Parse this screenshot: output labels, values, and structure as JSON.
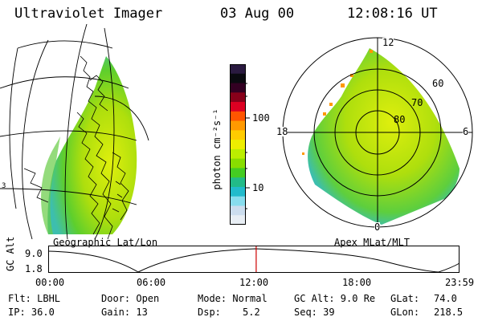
{
  "header": {
    "instrument": "Ultraviolet Imager",
    "date": "03 Aug 00",
    "time": "12:08:16 UT"
  },
  "panels": {
    "left_label": "Geographic Lat/Lon",
    "right_label": "Apex MLat/MLT",
    "left_edge_tick": "3"
  },
  "colorbar": {
    "unit_label": "photon cm⁻²s⁻¹",
    "ticks": [
      "100",
      "10"
    ],
    "colors": [
      "#2a1a40",
      "#0a0a10",
      "#330022",
      "#88001a",
      "#dd0022",
      "#ff5500",
      "#ff9900",
      "#ffcc00",
      "#eeee00",
      "#bbee00",
      "#88dd00",
      "#44cc22",
      "#22bb88",
      "#22bbcc",
      "#88ddee",
      "#ccddee",
      "#e8eef4"
    ]
  },
  "polar": {
    "mlt_labels": {
      "top": "12",
      "left": "18",
      "right": "6",
      "bottom": "0"
    },
    "lat_labels": [
      "60",
      "70",
      "80"
    ]
  },
  "timeline": {
    "axis_label": "GC Alt",
    "y_ticks": [
      "9.0",
      "1.8"
    ],
    "x_ticks": [
      "00:00",
      "06:00",
      "12:00",
      "18:00",
      "23:59"
    ],
    "current_time_fraction": 0.5057
  },
  "info": {
    "flt": "Flt: LBHL",
    "ip": "IP: 36.0",
    "door": "Door: Open",
    "gain": "Gain: 13",
    "mode": "Mode: Normal",
    "dsp_label": "Dsp:",
    "dsp_value": "5.2",
    "gc_alt": "GC Alt: 9.0 Re",
    "seq": "Seq: 39",
    "glat_label": "GLat:",
    "glat_value": "74.0",
    "glon_label": "GLon:",
    "glon_value": "218.5"
  },
  "colors": {
    "marker": "#cc0000",
    "aurora_outer": "#88dd00",
    "aurora_inner": "#ddee00",
    "aurora_edge": "#22bbaa"
  }
}
